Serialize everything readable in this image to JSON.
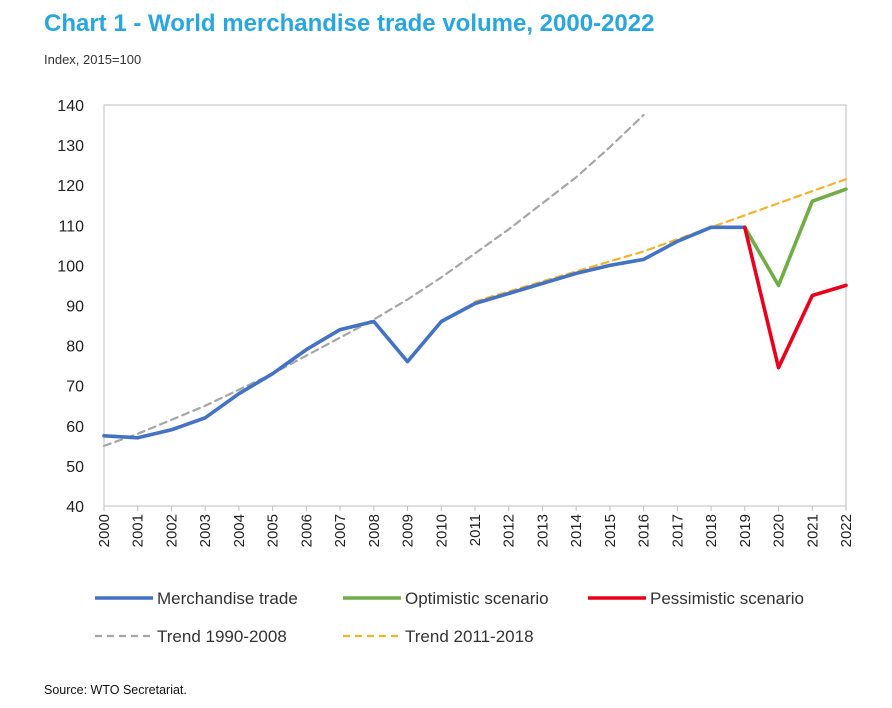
{
  "header": {
    "title": "Chart 1 - World merchandise trade volume, 2000-2022",
    "subtitle": "Index, 2015=100"
  },
  "footer": {
    "source": "Source:   WTO Secretariat."
  },
  "chart_data": {
    "type": "line",
    "title": "Chart 1 - World merchandise trade volume, 2000-2022",
    "ylabel": "Index, 2015=100",
    "xlabel": "",
    "ylim": [
      40,
      140
    ],
    "yticks": [
      40,
      50,
      60,
      70,
      80,
      90,
      100,
      110,
      120,
      130,
      140
    ],
    "categories": [
      "2000",
      "2001",
      "2002",
      "2003",
      "2004",
      "2005",
      "2006",
      "2007",
      "2008",
      "2009",
      "2010",
      "2011",
      "2012",
      "2013",
      "2014",
      "2015",
      "2016",
      "2017",
      "2018",
      "2019",
      "2020",
      "2021",
      "2022"
    ],
    "grid": false,
    "legend": "bottom",
    "series": [
      {
        "name": "Merchandise trade",
        "color": "#4472c4",
        "dash": "solid",
        "x": [
          "2000",
          "2001",
          "2002",
          "2003",
          "2004",
          "2005",
          "2006",
          "2007",
          "2008",
          "2009",
          "2010",
          "2011",
          "2012",
          "2013",
          "2014",
          "2015",
          "2016",
          "2017",
          "2018",
          "2019"
        ],
        "values": [
          57.5,
          57,
          59,
          62,
          68,
          73,
          79,
          84,
          86,
          76,
          86,
          90.5,
          93,
          95.5,
          98,
          100,
          101.5,
          106,
          109.5,
          109.5
        ]
      },
      {
        "name": "Optimistic scenario",
        "color": "#70ad47",
        "dash": "solid",
        "x": [
          "2019",
          "2020",
          "2021",
          "2022"
        ],
        "values": [
          109.5,
          95,
          116,
          119
        ]
      },
      {
        "name": "Pessimistic scenario",
        "color": "#e8001c",
        "dash": "solid",
        "x": [
          "2019",
          "2020",
          "2021",
          "2022"
        ],
        "values": [
          109.5,
          74.5,
          92.5,
          95
        ]
      },
      {
        "name": "Trend 1990-2008",
        "color": "#a6a6a6",
        "dash": "dashed",
        "x": [
          "2000",
          "2001",
          "2002",
          "2003",
          "2004",
          "2005",
          "2006",
          "2007",
          "2008",
          "2009",
          "2010",
          "2011",
          "2012",
          "2013",
          "2014",
          "2015",
          "2016"
        ],
        "values": [
          55,
          58,
          61.5,
          65,
          69,
          73,
          77.5,
          82,
          86.5,
          91.5,
          97,
          103,
          109,
          115.5,
          122,
          129.5,
          137.5
        ]
      },
      {
        "name": "Trend 2011-2018",
        "color": "#f2b32d",
        "dash": "dashed",
        "x": [
          "2011",
          "2012",
          "2013",
          "2014",
          "2015",
          "2016",
          "2017",
          "2018",
          "2019",
          "2020",
          "2021",
          "2022"
        ],
        "values": [
          91,
          93.5,
          96,
          98.5,
          101,
          103.5,
          106.5,
          109.5,
          112.5,
          115.5,
          118.5,
          121.5
        ]
      }
    ]
  }
}
